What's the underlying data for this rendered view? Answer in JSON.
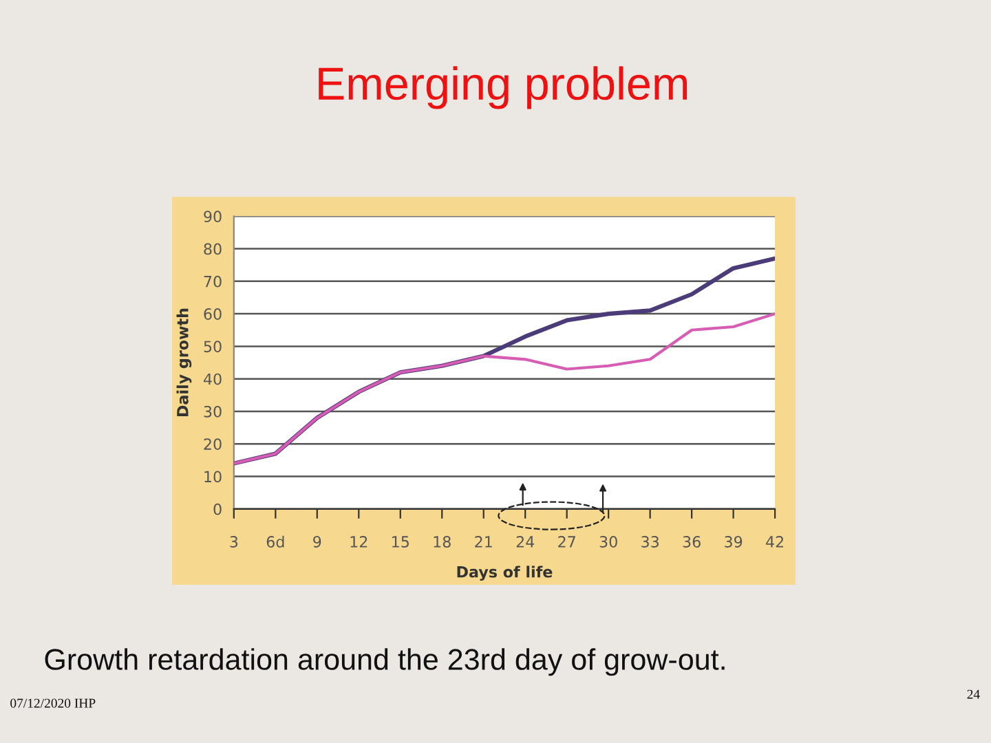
{
  "chart_data": {
    "type": "line",
    "title": "Emerging problem",
    "xlabel": "Days of life",
    "ylabel": "Daily growth",
    "categories": [
      "3",
      "6d",
      "9",
      "12",
      "15",
      "18",
      "21",
      "24",
      "27",
      "30",
      "33",
      "36",
      "39",
      "42"
    ],
    "series": [
      {
        "color": "#4b3b78",
        "values": [
          14,
          17,
          28,
          36,
          42,
          44,
          47,
          53,
          58,
          60,
          61,
          66,
          74,
          77
        ]
      },
      {
        "color": "#d65cb4",
        "values": [
          14,
          17,
          28,
          36,
          42,
          44,
          47,
          46,
          43,
          44,
          46,
          55,
          56,
          60
        ]
      }
    ],
    "ylim": [
      0,
      90
    ],
    "yticks": [
      0,
      10,
      20,
      30,
      40,
      50,
      60,
      70,
      80,
      90
    ],
    "grid": "y",
    "annotations": [
      "Growth retardation around the 23rd day of grow-out.",
      "07/12/2020 IHP",
      "24"
    ]
  }
}
